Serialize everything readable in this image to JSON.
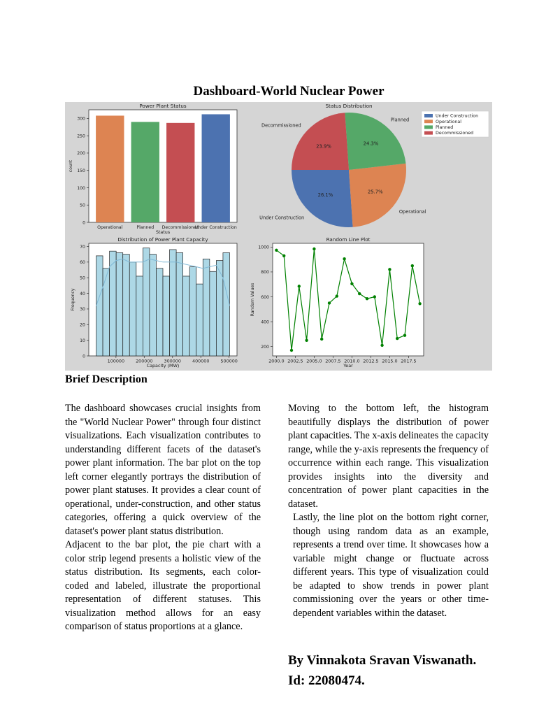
{
  "document": {
    "title": "Dashboard-World Nuclear Power",
    "section_title": "Brief Description",
    "left_paragraphs": [
      "The dashboard showcases crucial insights from the \"World Nuclear Power\" through four distinct visualizations. Each visualization contributes to understanding different facets of the dataset's power plant information. The bar plot on the top left corner elegantly portrays the distribution of power plant statuses. It provides a clear count of operational, under-construction, and other status categories, offering a quick overview of the dataset's power plant status distribution.",
      "Adjacent to the bar plot, the pie chart with a color strip legend presents a holistic view of the status distribution. Its segments, each color-coded and labeled, illustrate the proportional representation of different statuses. This visualization method allows for an easy comparison of status proportions at a glance."
    ],
    "right_paragraphs": [
      "Moving to the bottom left, the histogram beautifully displays the distribution of power plant capacities. The x-axis delineates the capacity range, while the y-axis represents the frequency of occurrence within each range. This visualization provides insights into the diversity and concentration of power plant capacities in the dataset.",
      "Lastly, the line plot on the bottom right corner, though using random data as an example, represents a trend over time. It showcases how a variable might change or fluctuate across different years. This type of visualization could be adapted to show trends in power plant commissioning over the years or other time-dependent variables within the dataset."
    ],
    "author": "By Vinnakota Sravan Viswanath.",
    "student_id": "Id: 22080474."
  },
  "colors": {
    "Operational": "#dd8452",
    "Planned": "#55a868",
    "Decommissioned": "#c44e52",
    "Under Construction": "#4c72b0",
    "hist": "#add8e6",
    "line": "#008000",
    "panel": "#d5d5d5"
  },
  "chart_data": [
    {
      "type": "bar",
      "title": "Power Plant Status",
      "categories": [
        "Operational",
        "Planned",
        "Decommissioned",
        "Under Construction"
      ],
      "values": [
        308,
        290,
        287,
        312
      ],
      "xlabel": "Status",
      "ylabel": "count",
      "ylim": [
        0,
        325
      ],
      "yticks": [
        0,
        50,
        100,
        150,
        200,
        250,
        300
      ]
    },
    {
      "type": "pie",
      "title": "Status Distribution",
      "labels": [
        "Under Construction",
        "Operational",
        "Planned",
        "Decommissioned"
      ],
      "values": [
        26.1,
        25.7,
        24.3,
        23.9
      ],
      "value_labels": [
        "26.1%",
        "25.7%",
        "24.3%",
        "23.9%"
      ],
      "legend": [
        "Under Construction",
        "Operational",
        "Planned",
        "Decommissioned"
      ],
      "legend_position": "top-right"
    },
    {
      "type": "bar",
      "subtype": "histogram",
      "title": "Distribution of Power Plant Capacity",
      "bin_range": [
        30000,
        502000
      ],
      "values": [
        64,
        56,
        67,
        66,
        65,
        60,
        51,
        69,
        65,
        56,
        51,
        68,
        66,
        51,
        57,
        46,
        62,
        54,
        61,
        66
      ],
      "kde": [
        32,
        44,
        57,
        61,
        62,
        60,
        60,
        60,
        62,
        61,
        60,
        60,
        60,
        59,
        58,
        57,
        56,
        57,
        58,
        50,
        32
      ],
      "xlabel": "Capacity (MW)",
      "ylabel": "Frequency",
      "ylim": [
        0,
        72
      ],
      "xticks": [
        100000,
        200000,
        300000,
        400000,
        500000
      ],
      "yticks": [
        0,
        10,
        20,
        30,
        40,
        50,
        60,
        70
      ]
    },
    {
      "type": "line",
      "title": "Random Line Plot",
      "x": [
        2000,
        2001,
        2002,
        2003,
        2004,
        2005,
        2006,
        2007,
        2008,
        2009,
        2010,
        2011,
        2012,
        2013,
        2014,
        2015,
        2016,
        2017,
        2018,
        2019
      ],
      "y": [
        975,
        930,
        170,
        685,
        250,
        985,
        260,
        550,
        605,
        905,
        705,
        625,
        585,
        600,
        210,
        820,
        265,
        290,
        850,
        545
      ],
      "xlabel": "Year",
      "ylabel": "Random Values",
      "xlim": [
        1999.5,
        2019.5
      ],
      "ylim": [
        125,
        1030
      ],
      "xticks": [
        "2000.0",
        "2002.5",
        "2005.0",
        "2007.5",
        "2010.0",
        "2012.5",
        "2015.0",
        "2017.5"
      ],
      "yticks": [
        200,
        400,
        600,
        800,
        1000
      ]
    }
  ]
}
